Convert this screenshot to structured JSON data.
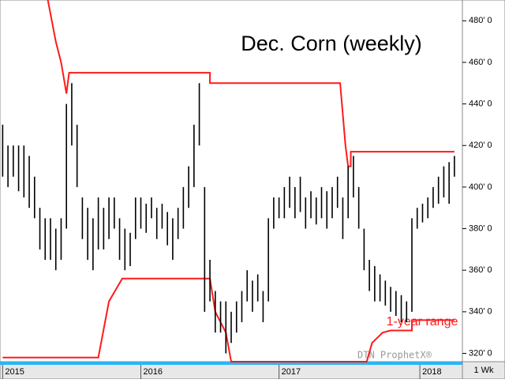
{
  "chart_data": {
    "type": "hlc",
    "title": "Dec. Corn (weekly)",
    "watermark": "DTN ProphetX®",
    "annotation": "1-year range",
    "period": "1 Wk",
    "bar_color": "#000000",
    "range_color": "#ff1a1a",
    "x": [
      0,
      2,
      4,
      6,
      8,
      10,
      12,
      14,
      16,
      18,
      20,
      22,
      24,
      26,
      28,
      30,
      32,
      34,
      36,
      38,
      40,
      42,
      44,
      46,
      48,
      50,
      52,
      54,
      56,
      58,
      60,
      62,
      64,
      66,
      68,
      70,
      72,
      74,
      76,
      78,
      80,
      82,
      84,
      86,
      88,
      90,
      92,
      94,
      96,
      98,
      100,
      102,
      104,
      106,
      108,
      110,
      112,
      114,
      116,
      118,
      120,
      122,
      124,
      126,
      128,
      130,
      132,
      134,
      136,
      138,
      140,
      142,
      144,
      146,
      148,
      150,
      152,
      154,
      156,
      158,
      160,
      162,
      164,
      166,
      168,
      170
    ],
    "high": [
      430,
      420,
      420,
      420,
      420,
      415,
      405,
      390,
      385,
      385,
      380,
      385,
      440,
      450,
      430,
      395,
      390,
      385,
      395,
      390,
      395,
      395,
      385,
      380,
      378,
      395,
      395,
      392,
      395,
      390,
      392,
      388,
      385,
      390,
      400,
      410,
      430,
      450,
      400,
      365,
      350,
      345,
      345,
      340,
      345,
      350,
      360,
      355,
      358,
      350,
      385,
      395,
      395,
      400,
      405,
      400,
      405,
      395,
      398,
      395,
      400,
      398,
      400,
      405,
      395,
      410,
      415,
      400,
      380,
      365,
      362,
      358,
      355,
      352,
      350,
      348,
      345,
      385,
      390,
      392,
      395,
      400,
      405,
      410,
      412,
      415
    ],
    "low": [
      405,
      400,
      405,
      398,
      395,
      390,
      385,
      370,
      365,
      365,
      360,
      365,
      380,
      420,
      400,
      375,
      365,
      360,
      370,
      370,
      375,
      380,
      365,
      360,
      362,
      375,
      380,
      378,
      385,
      375,
      380,
      372,
      365,
      375,
      380,
      390,
      400,
      420,
      340,
      345,
      330,
      330,
      320,
      325,
      330,
      335,
      345,
      340,
      345,
      335,
      345,
      380,
      385,
      385,
      390,
      385,
      388,
      380,
      385,
      382,
      385,
      380,
      385,
      390,
      375,
      385,
      395,
      380,
      360,
      350,
      345,
      345,
      343,
      340,
      338,
      335,
      335,
      340,
      380,
      383,
      385,
      390,
      392,
      395,
      392,
      405
    ],
    "ranges": [
      {
        "color": "#ff1a1a",
        "x": [
          17,
          20,
          22,
          24,
          25,
          78,
          78,
          127,
          129,
          130,
          131,
          131,
          170
        ],
        "values": [
          490,
          470,
          460,
          445,
          455,
          455,
          450,
          450,
          420,
          410,
          410,
          417,
          417
        ]
      },
      {
        "color": "#ff1a1a",
        "x": [
          0,
          36,
          40,
          45,
          78,
          80,
          84,
          86,
          137,
          139,
          143,
          146,
          154,
          154,
          170
        ],
        "values": [
          318,
          318,
          345,
          356,
          356,
          340,
          330,
          316,
          316,
          325,
          330,
          331,
          331,
          336,
          336
        ]
      }
    ],
    "xlim": [
      -1,
      173
    ],
    "xticks": [
      {
        "value": 0,
        "label": "2015"
      },
      {
        "value": 52,
        "label": "2016"
      },
      {
        "value": 104,
        "label": "2017"
      },
      {
        "value": 157,
        "label": "2018"
      }
    ],
    "ylim": [
      316,
      490
    ],
    "yticks": [
      {
        "value": 320,
        "label": "320' 0"
      },
      {
        "value": 340,
        "label": "340' 0"
      },
      {
        "value": 360,
        "label": "360' 0"
      },
      {
        "value": 380,
        "label": "380' 0"
      },
      {
        "value": 400,
        "label": "400' 0"
      },
      {
        "value": 420,
        "label": "420' 0"
      },
      {
        "value": 440,
        "label": "440' 0"
      },
      {
        "value": 460,
        "label": "460' 0"
      },
      {
        "value": 480,
        "label": "480' 0"
      }
    ]
  }
}
